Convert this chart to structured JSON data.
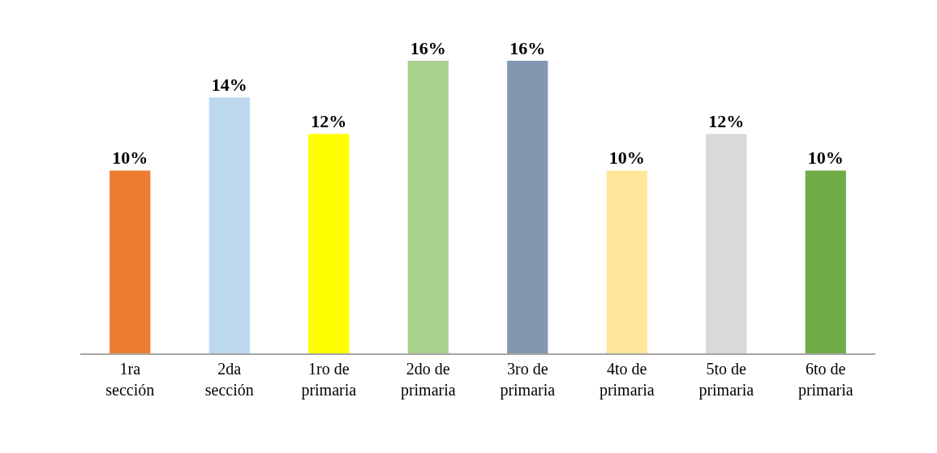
{
  "chart_data": {
    "type": "bar",
    "categories": [
      "1ra sección",
      "2da sección",
      "1ro de primaria",
      "2do de primaria",
      "3ro de primaria",
      "4to de primaria",
      "5to de primaria",
      "6to de primaria"
    ],
    "values": [
      10,
      14,
      12,
      16,
      16,
      10,
      12,
      10
    ],
    "value_labels": [
      "10%",
      "14%",
      "12%",
      "16%",
      "16%",
      "10%",
      "12%",
      "10%"
    ],
    "colors": [
      "#ed7d31",
      "#bdd7ee",
      "#ffff00",
      "#a9d18e",
      "#8497b0",
      "#ffe699",
      "#d9d9d9",
      "#70ad47"
    ]
  }
}
